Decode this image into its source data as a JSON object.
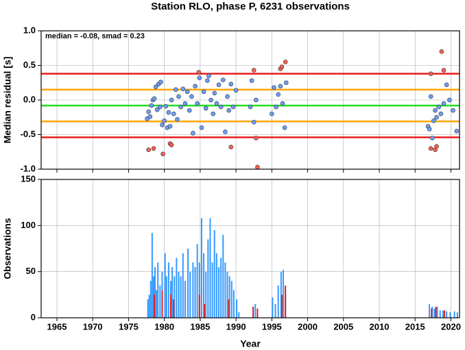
{
  "chart_data": [
    {
      "type": "scatter",
      "title": "Station RLO, phase P, 6231 observations",
      "y_label": "Median residual [s]",
      "annotation": "median = -0.08, smad = 0.23",
      "xlim": [
        1962.8,
        2021.2
      ],
      "xticks": [
        1965,
        1970,
        1975,
        1980,
        1985,
        1990,
        1995,
        2000,
        2005,
        2010,
        2015,
        2020
      ],
      "ylim": [
        -1,
        1
      ],
      "yticks": [
        {
          "value": 1,
          "label": "1.0"
        },
        0.5,
        {
          "value": 0,
          "label": "0.0"
        },
        -0.5,
        {
          "value": -1,
          "label": "-1.0"
        }
      ],
      "grid": true,
      "hlines": [
        {
          "value": 0.38,
          "color": "#e81c1c"
        },
        {
          "value": 0.15,
          "color": "#ffa500"
        },
        {
          "value": -0.08,
          "color": "#22dd22"
        },
        {
          "value": -0.31,
          "color": "#ffa500"
        },
        {
          "value": -0.54,
          "color": "#e81c1c"
        }
      ],
      "series": [
        {
          "color": "#6a9ff2",
          "x": [
            1977.6,
            1977.8,
            1978.0,
            1978.2,
            1978.4,
            1978.6,
            1978.8,
            1979.0,
            1979.2,
            1979.4,
            1979.5,
            1979.7,
            1980.0,
            1980.2,
            1980.4,
            1980.6,
            1980.8,
            1981.0,
            1981.3,
            1981.6,
            1981.8,
            1982.0,
            1982.3,
            1982.6,
            1982.9,
            1983.2,
            1983.5,
            1983.8,
            1984.0,
            1984.3,
            1984.6,
            1984.9,
            1985.2,
            1985.5,
            1985.8,
            1986.0,
            1986.2,
            1986.5,
            1986.8,
            1987.0,
            1987.3,
            1987.6,
            1987.9,
            1988.2,
            1988.5,
            1988.8,
            1989.0,
            1989.3,
            1989.6,
            1990.0,
            1992.0,
            1992.2,
            1992.5,
            1992.8,
            1995.0,
            1995.3,
            1995.6,
            1995.9,
            1996.2,
            1996.5,
            1996.8,
            1997.0,
            2016.8,
            2017.0,
            2017.2,
            2017.4,
            2017.6,
            2017.8,
            2018.0,
            2018.3,
            2018.6,
            2019.0,
            2019.4,
            2019.8,
            2020.3,
            2020.8
          ],
          "values": [
            -0.27,
            -0.17,
            -0.24,
            -0.08,
            0.0,
            0.02,
            0.19,
            -0.14,
            0.23,
            -0.1,
            0.26,
            -0.36,
            -0.3,
            -0.09,
            -0.4,
            -0.18,
            -0.38,
            0.0,
            -0.2,
            0.15,
            -0.28,
            0.05,
            -0.1,
            0.16,
            -0.05,
            0.12,
            -0.15,
            0.05,
            -0.48,
            0.2,
            -0.05,
            0.32,
            -0.4,
            0.12,
            -0.12,
            0.28,
            0.35,
            0.0,
            -0.2,
            0.1,
            -0.05,
            0.22,
            -0.1,
            0.29,
            -0.46,
            0.05,
            -0.15,
            0.23,
            -0.1,
            0.14,
            -0.1,
            0.28,
            -0.32,
            0.0,
            -0.2,
            0.18,
            -0.1,
            0.08,
            0.2,
            -0.05,
            -0.4,
            0.25,
            -0.38,
            -0.42,
            0.05,
            -0.55,
            -0.3,
            -0.15,
            -0.25,
            -0.1,
            -0.2,
            -0.05,
            0.22,
            0.0,
            -0.15,
            -0.45
          ]
        },
        {
          "color": "#f4604c",
          "x": [
            1977.8,
            1978.5,
            1979.8,
            1980.8,
            1981.0,
            1984.8,
            1989.3,
            1992.5,
            1992.8,
            1993.0,
            1996.2,
            1996.4,
            1996.9,
            2017.2,
            2017.2,
            2017.8,
            2018.0,
            2018.7,
            2019.0
          ],
          "values": [
            -0.72,
            -0.7,
            -0.78,
            -0.63,
            -0.65,
            0.4,
            -0.68,
            0.43,
            -0.55,
            -0.97,
            0.45,
            0.48,
            0.55,
            0.38,
            -0.7,
            -0.72,
            -0.67,
            0.7,
            0.43
          ]
        }
      ]
    },
    {
      "type": "bar",
      "x_label": "Year",
      "y_label": "Observations",
      "xlim": [
        1962.8,
        2021.2
      ],
      "xticks": [
        1965,
        1970,
        1975,
        1980,
        1985,
        1990,
        1995,
        2000,
        2005,
        2010,
        2015,
        2020
      ],
      "ylim": [
        0,
        150
      ],
      "yticks": [
        0,
        50,
        100,
        150
      ],
      "grid": true,
      "series": [
        {
          "color": "#3399ff",
          "x": [
            1977.6,
            1977.8,
            1978.0,
            1978.2,
            1978.4,
            1978.6,
            1978.8,
            1979.0,
            1979.3,
            1979.6,
            1980.0,
            1980.2,
            1980.5,
            1980.8,
            1981.0,
            1981.3,
            1981.6,
            1981.9,
            1982.2,
            1982.5,
            1982.8,
            1983.2,
            1983.5,
            1983.9,
            1984.2,
            1984.5,
            1984.8,
            1985.1,
            1985.4,
            1985.7,
            1986.0,
            1986.3,
            1986.6,
            1986.9,
            1987.2,
            1987.5,
            1987.8,
            1988.1,
            1988.4,
            1988.7,
            1989.0,
            1989.3,
            1989.6,
            1990.0,
            1990.3,
            1992.3,
            1992.6,
            1995.0,
            1995.4,
            1995.8,
            1996.2,
            1996.5,
            1996.8,
            2016.9,
            2017.3,
            2017.6,
            2018.0,
            2018.4,
            2018.8,
            2019.3,
            2019.8,
            2020.4,
            2020.8
          ],
          "values": [
            20,
            25,
            40,
            92,
            45,
            55,
            30,
            60,
            35,
            50,
            70,
            45,
            60,
            40,
            55,
            45,
            65,
            50,
            45,
            70,
            40,
            75,
            50,
            60,
            55,
            80,
            60,
            108,
            70,
            50,
            85,
            108,
            60,
            95,
            70,
            55,
            65,
            90,
            60,
            50,
            45,
            40,
            30,
            20,
            6,
            12,
            15,
            22,
            15,
            35,
            50,
            52,
            30,
            15,
            12,
            10,
            12,
            8,
            8,
            7,
            6,
            7,
            6
          ]
        },
        {
          "color": "#e02020",
          "x": [
            1978.5,
            1979.6,
            1980.8,
            1981.2,
            1984.8,
            1985.5,
            1988.9,
            1992.3,
            1992.9,
            1996.3,
            1996.8,
            2017.2,
            2017.8,
            2019.0
          ],
          "values": [
            25,
            30,
            25,
            20,
            25,
            15,
            20,
            12,
            10,
            25,
            35,
            10,
            12,
            8
          ]
        }
      ]
    }
  ]
}
